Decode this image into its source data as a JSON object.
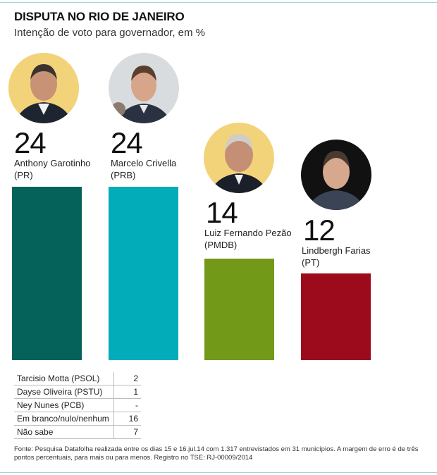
{
  "title": "DISPUTA NO RIO DE JANEIRO",
  "subtitle": "Intenção de voto para governador, em %",
  "chart_data": {
    "type": "bar",
    "title": "DISPUTA NO RIO DE JANEIRO",
    "subtitle": "Intenção de voto para governador, em %",
    "categories": [
      "Anthony Garotinho",
      "Marcelo Crivella",
      "Luiz Fernando Pezão",
      "Lindbergh Farias"
    ],
    "parties": [
      "(PR)",
      "(PRB)",
      "(PMDB)",
      "(PT)"
    ],
    "values": [
      24,
      24,
      14,
      12
    ],
    "colors": [
      "#04625a",
      "#03acb9",
      "#739918",
      "#9b0b1c"
    ],
    "ylim": [
      0,
      24
    ],
    "grid": false,
    "others": [
      {
        "name": "Tarcisio Motta (PSOL)",
        "value": "2"
      },
      {
        "name": "Dayse Oliveira (PSTU)",
        "value": "1"
      },
      {
        "name": "Ney Nunes (PCB)",
        "value": "-"
      },
      {
        "name": "Em branco/nulo/nenhum",
        "value": "16"
      },
      {
        "name": "Não sabe",
        "value": "7"
      }
    ]
  },
  "source": "Fonte: Pesquisa Datafolha realizada entre os dias 15 e 16.jul.14 com 1.317 entrevistados em 31 municípios. A margem de erro é de três pontos percentuais, para mais ou para menos. Registro no TSE: RJ-00009/2014"
}
